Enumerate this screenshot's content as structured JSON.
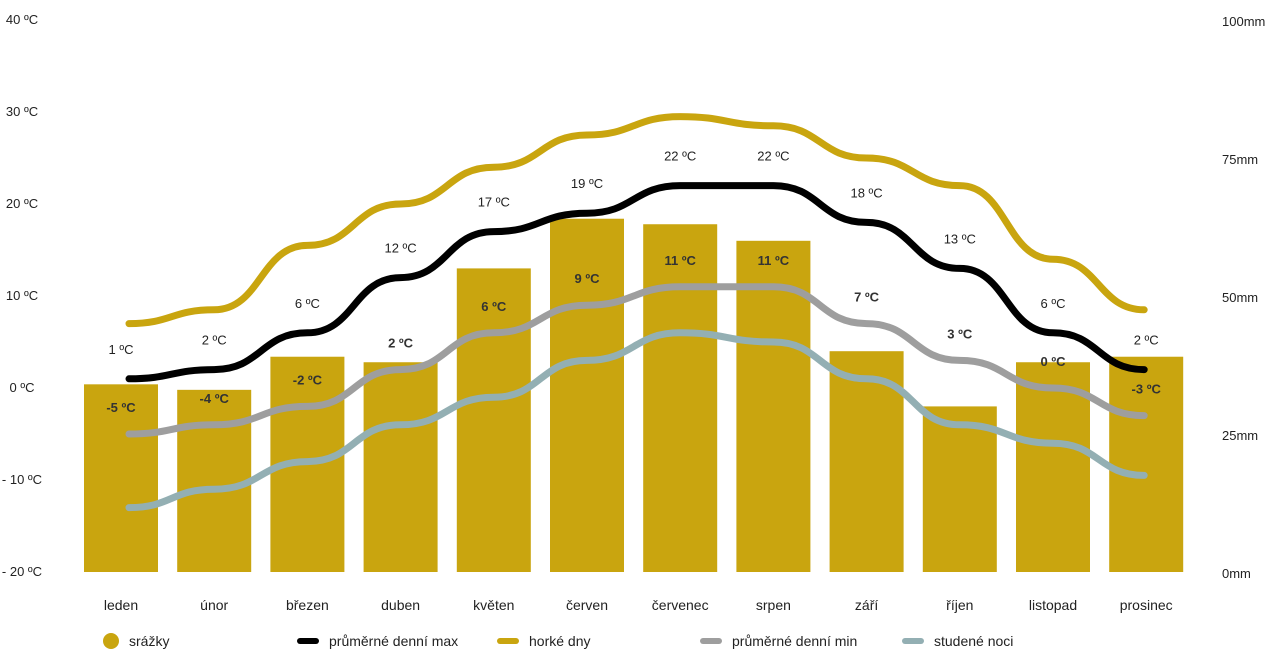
{
  "chart_data": {
    "type": "bar+line",
    "categories": [
      "leden",
      "únor",
      "březen",
      "duben",
      "květen",
      "červen",
      "červenec",
      "srpen",
      "září",
      "říjen",
      "listopad",
      "prosinec"
    ],
    "y_left": {
      "ticks": [
        "40 ºC",
        "30 ºC",
        "20 ºC",
        "10 ºC",
        "0 ºC",
        "- 10 ºC",
        "- 20 ºC"
      ],
      "range": [
        -20,
        40
      ]
    },
    "y_right": {
      "ticks": [
        "100mm",
        "75mm",
        "50mm",
        "25mm",
        "0mm"
      ],
      "range": [
        0,
        100
      ]
    },
    "bars": {
      "name": "srážky",
      "color": "#C9A50F",
      "values": [
        34,
        33,
        39,
        38,
        55,
        64,
        63,
        60,
        40,
        30,
        38,
        39
      ]
    },
    "series": [
      {
        "name": "horké dny",
        "color": "#C9A50F",
        "values": [
          7,
          8.5,
          15.5,
          20,
          24,
          27.5,
          29.5,
          28.5,
          25,
          22,
          14,
          8.5
        ]
      },
      {
        "name": "průměrné denní max",
        "color": "#000000",
        "values": [
          1,
          2,
          6,
          12,
          17,
          19,
          22,
          22,
          18,
          13,
          6,
          2
        ],
        "labels": [
          "1 ºC",
          "2 ºC",
          "6 ºC",
          "12 ºC",
          "17 ºC",
          "19 ºC",
          "22 ºC",
          "22 ºC",
          "18 ºC",
          "13 ºC",
          "6 ºC",
          "2 ºC"
        ]
      },
      {
        "name": "průměrné denní min",
        "color": "#9E9E9E",
        "values": [
          -5,
          -4,
          -2,
          2,
          6,
          9,
          11,
          11,
          7,
          3,
          0,
          -3
        ],
        "labels": [
          "-5 ºC",
          "-4 ºC",
          "-2 ºC",
          "2 ºC",
          "6 ºC",
          "9 ºC",
          "11 ºC",
          "11 ºC",
          "7 ºC",
          "3 ºC",
          "0 ºC",
          "-3 ºC"
        ]
      },
      {
        "name": "studené noci",
        "color": "#93AFB3",
        "values": [
          -13,
          -11,
          -8,
          -4,
          -1,
          3,
          6,
          5,
          1,
          -4,
          -6,
          -9.5
        ]
      }
    ],
    "legend": "bottom"
  }
}
